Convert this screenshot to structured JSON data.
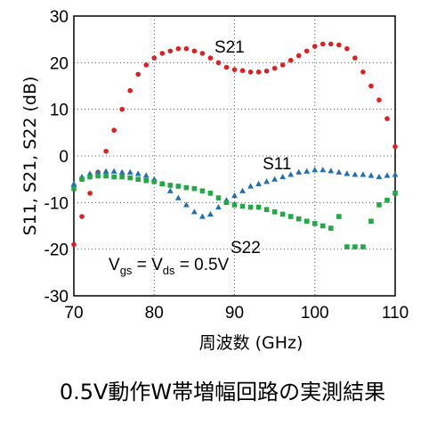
{
  "caption": "0.5V動作W帯増幅回路の実測結果",
  "chart_data": {
    "type": "scatter",
    "xlabel": "周波数 (GHz)",
    "ylabel": "S11, S21, S22 (dB)",
    "xlim": [
      70,
      110
    ],
    "ylim": [
      -30,
      30
    ],
    "xticks": [
      70,
      80,
      90,
      100,
      110
    ],
    "yticks": [
      -30,
      -20,
      -10,
      0,
      10,
      20,
      30
    ],
    "grid": "dotted",
    "annotations": {
      "condition": {
        "prefix": "V",
        "sub1": "gs",
        "middle": " = V",
        "sub2": "ds",
        "suffix": " = 0.5V"
      }
    },
    "series": [
      {
        "name": "S21",
        "color": "#e02020",
        "marker": "circle",
        "x": [
          70,
          71,
          72,
          73,
          74,
          75,
          76,
          77,
          78,
          79,
          80,
          81,
          82,
          83,
          84,
          85,
          86,
          87,
          88,
          89,
          90,
          91,
          92,
          93,
          94,
          95,
          96,
          97,
          98,
          99,
          100,
          101,
          102,
          103,
          104,
          105,
          106,
          107,
          108,
          109,
          110
        ],
        "y": [
          -19,
          -13,
          -8,
          -3.5,
          1,
          5.5,
          10,
          14,
          17.5,
          19.5,
          21,
          22,
          22.5,
          23,
          23,
          22.5,
          22,
          21,
          20,
          19,
          18.5,
          18.3,
          18,
          18,
          18.2,
          18.8,
          19.5,
          20.5,
          21.5,
          22.5,
          23.5,
          24,
          24,
          23.8,
          23,
          21,
          18,
          15,
          12,
          8,
          2
        ]
      },
      {
        "name": "S11",
        "color": "#1f6fb5",
        "marker": "triangle",
        "x": [
          70,
          71,
          72,
          73,
          74,
          75,
          76,
          77,
          78,
          79,
          80,
          81,
          82,
          83,
          84,
          85,
          86,
          87,
          88,
          89,
          90,
          91,
          92,
          93,
          94,
          95,
          96,
          97,
          98,
          99,
          100,
          101,
          102,
          103,
          104,
          105,
          106,
          107,
          108,
          109,
          110
        ],
        "y": [
          -6,
          -4.5,
          -3.8,
          -3.5,
          -3.3,
          -3.3,
          -3.5,
          -3.5,
          -3.8,
          -4.2,
          -5,
          -6,
          -7.5,
          -9,
          -10.5,
          -12,
          -13,
          -12.5,
          -11,
          -9.5,
          -8.5,
          -7.5,
          -6.5,
          -6,
          -5.5,
          -5,
          -4.5,
          -4,
          -3.5,
          -3.3,
          -3,
          -3,
          -3.2,
          -3.5,
          -3.8,
          -4,
          -4,
          -4.2,
          -4.5,
          -4.2,
          -4
        ]
      },
      {
        "name": "S22",
        "color": "#22a845",
        "marker": "square",
        "x": [
          70,
          71,
          72,
          73,
          74,
          75,
          76,
          77,
          78,
          79,
          80,
          81,
          82,
          83,
          84,
          85,
          86,
          87,
          88,
          89,
          90,
          91,
          92,
          93,
          94,
          95,
          96,
          97,
          98,
          99,
          100,
          101,
          102,
          103,
          104,
          105,
          106,
          107,
          108,
          109,
          110
        ],
        "y": [
          -7,
          -5,
          -4.5,
          -4.3,
          -4.3,
          -4.5,
          -4.5,
          -4.7,
          -5,
          -5.3,
          -5.5,
          -6,
          -6.3,
          -6.5,
          -6.8,
          -7,
          -7.5,
          -8,
          -9,
          -10,
          -10.5,
          -10.8,
          -11,
          -11,
          -11.5,
          -12,
          -12.5,
          -13,
          -13.5,
          -14,
          -14.5,
          -15,
          -15.5,
          -13,
          -19.5,
          -19.5,
          -19.5,
          -14,
          -10.5,
          -9.5,
          -8
        ]
      }
    ]
  }
}
